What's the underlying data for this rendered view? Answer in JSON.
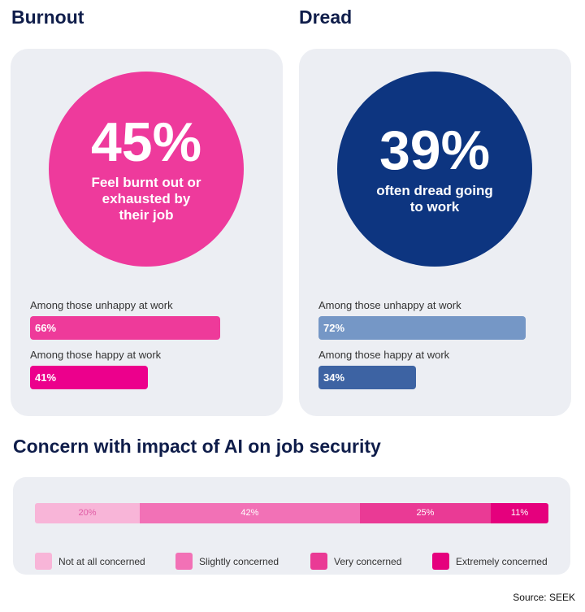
{
  "chart_data": [
    {
      "type": "bar",
      "title": "Burnout",
      "headline": {
        "value": "45%",
        "text": "Feel burnt out or exhausted by their job"
      },
      "categories": [
        "Among those unhappy at work",
        "Among those happy at work"
      ],
      "values": [
        66,
        41
      ],
      "labels": [
        "66%",
        "41%"
      ],
      "colors": [
        "#ee3a9a",
        "#ec008c"
      ],
      "circle_color": "#ee3a9c"
    },
    {
      "type": "bar",
      "title": "Dread",
      "headline": {
        "value": "39%",
        "text": "often dread going to work"
      },
      "categories": [
        "Among those unhappy at work",
        "Among those happy at work"
      ],
      "values": [
        72,
        34
      ],
      "labels": [
        "72%",
        "34%"
      ],
      "colors": [
        "#7597c6",
        "#3d63a3"
      ],
      "circle_color": "#0d3580"
    },
    {
      "type": "bar",
      "stacked": true,
      "title": "Concern with impact of AI on job security",
      "series": [
        {
          "name": "Not at all concerned",
          "value": 20,
          "label": "20%",
          "color": "#f8b5d8"
        },
        {
          "name": "Slightly concerned",
          "value": 42,
          "label": "42%",
          "color": "#f271b6"
        },
        {
          "name": "Very concerned",
          "value": 25,
          "label": "25%",
          "color": "#ea3a95"
        },
        {
          "name": "Extremely concerned",
          "value": 11,
          "label": "11%",
          "color": "#e5007d"
        }
      ],
      "legend": "bottom"
    }
  ],
  "source": "Source: SEEK"
}
